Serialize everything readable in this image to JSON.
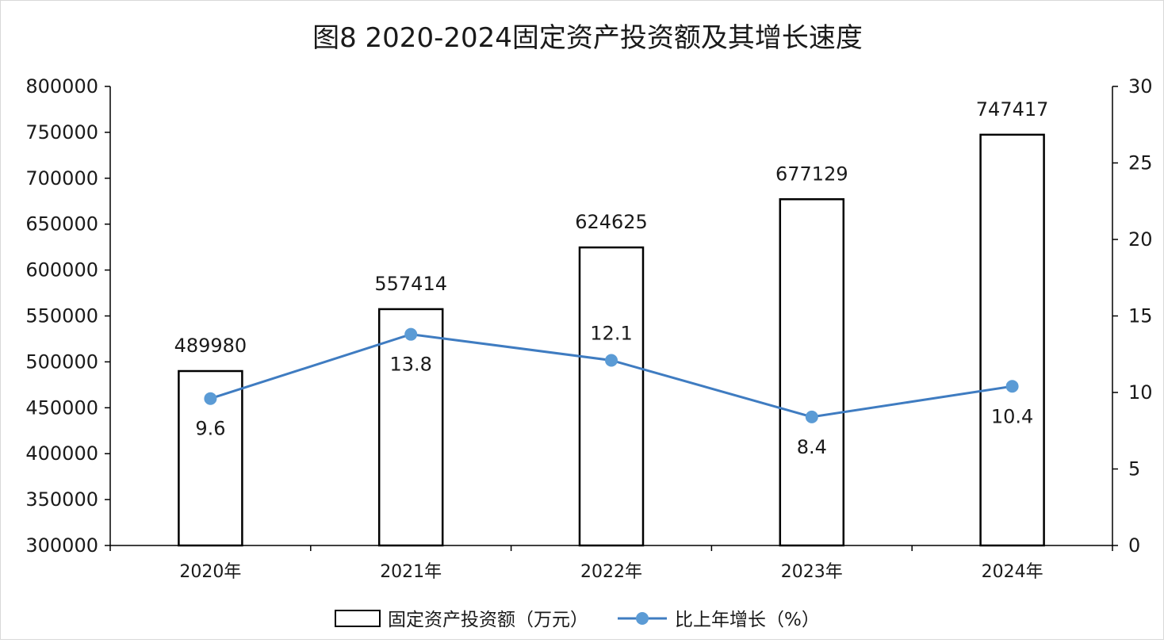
{
  "chart_data": {
    "type": "bar+line",
    "title": "图8  2020-2024固定资产投资额及其增长速度",
    "categories": [
      "2020年",
      "2021年",
      "2022年",
      "2023年",
      "2024年"
    ],
    "series": [
      {
        "name": "固定资产投资额（万元）",
        "type": "bar",
        "axis": "left",
        "color": "#ffffff",
        "stroke": "#000000",
        "values": [
          489980,
          557414,
          624625,
          677129,
          747417
        ],
        "labels": [
          "489980",
          "557414",
          "624625",
          "677129",
          "747417"
        ]
      },
      {
        "name": "比上年增长（%）",
        "type": "line",
        "axis": "right",
        "color": "#3f7cc1",
        "marker_color": "#5b9bd5",
        "values": [
          9.6,
          13.8,
          12.1,
          8.4,
          10.4
        ],
        "labels": [
          "9.6",
          "13.8",
          "12.1",
          "8.4",
          "10.4"
        ]
      }
    ],
    "y_left": {
      "range": [
        300000,
        800000
      ],
      "ticks": [
        "300000",
        "350000",
        "400000",
        "450000",
        "500000",
        "550000",
        "600000",
        "650000",
        "700000",
        "750000",
        "800000"
      ]
    },
    "y_right": {
      "range": [
        0,
        30
      ],
      "ticks": [
        "0",
        "5",
        "10",
        "15",
        "20",
        "25",
        "30"
      ]
    },
    "grid": false,
    "legend_position": "bottom"
  }
}
